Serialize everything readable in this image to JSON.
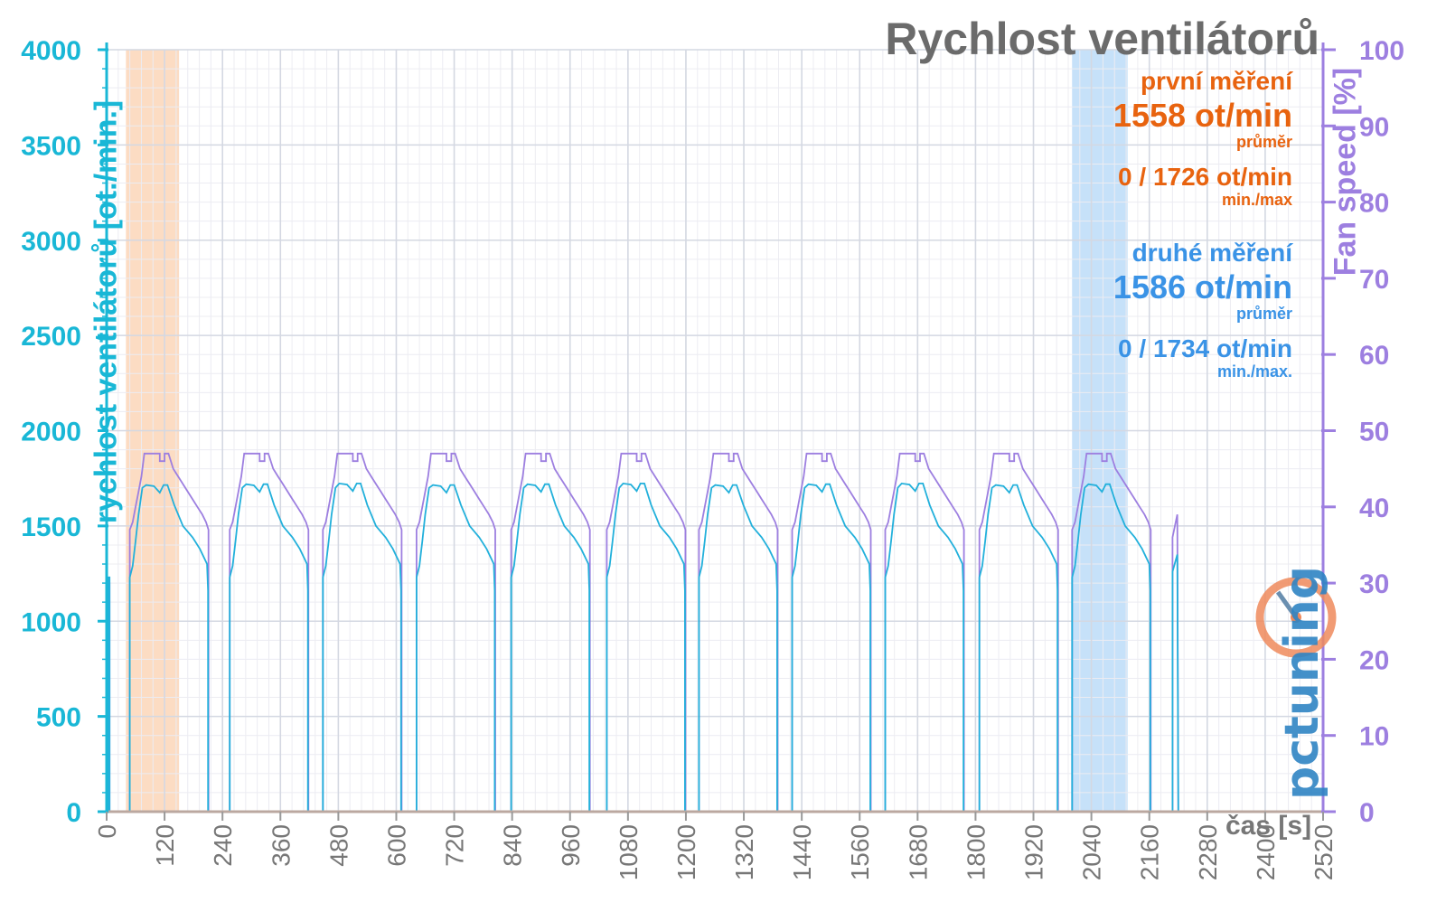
{
  "title": "Rychlost ventilátorů",
  "measure1": {
    "heading": "první měření",
    "avg": "1558 ot/min",
    "avg_label": "průměr",
    "minmax": "0 / 1726 ot/min",
    "minmax_label": "min./max",
    "color": "#e8630f"
  },
  "measure2": {
    "heading": "druhé měření",
    "avg": "1586 ot/min",
    "avg_label": "průměr",
    "minmax": "0 / 1734 ot/min",
    "minmax_label": "min./max.",
    "color": "#3a93e6"
  },
  "logo_text": "pctuning",
  "chart_data": {
    "type": "line",
    "xlabel": "čas [s]",
    "ylabel": "rychlost ventilátorů [ot./min.]",
    "y2label": "Fan speed [%]",
    "xlim": [
      0,
      2520
    ],
    "ylim": [
      0,
      4000
    ],
    "y2lim": [
      0,
      100
    ],
    "x_ticks": [
      0,
      120,
      240,
      360,
      480,
      600,
      720,
      840,
      960,
      1080,
      1200,
      1320,
      1440,
      1560,
      1680,
      1800,
      1920,
      2040,
      2160,
      2280,
      2400,
      2520
    ],
    "y_ticks": [
      0,
      500,
      1000,
      1500,
      2000,
      2500,
      3000,
      3500,
      4000
    ],
    "y2_ticks": [
      0,
      10,
      20,
      30,
      40,
      50,
      60,
      70,
      80,
      90,
      100
    ],
    "grid": true,
    "highlights": [
      {
        "x": [
          40,
          150
        ],
        "color": "#fbd6b8"
      },
      {
        "x": [
          2000,
          2115
        ],
        "color": "#bcdcf8"
      }
    ],
    "cycles": {
      "starts": [
        48,
        255,
        448,
        642,
        838,
        1036,
        1227,
        1420,
        1613,
        1808,
        2000
      ],
      "duration": 165,
      "partial_start": [
        2208,
        2232
      ],
      "rpm_colors": [
        "#e8630f",
        "#3a93e6"
      ],
      "colors": {
        "rpm": "#22b0db",
        "pct": "#9d7fe0",
        "rpm_drop": "#4a7fd9"
      }
    },
    "series": [
      {
        "name": "rychlost ventilátorů [ot./min.]",
        "axis": "left",
        "plateau": 1715,
        "peak": 1734,
        "start": 1230
      },
      {
        "name": "Fan speed [%]",
        "axis": "right",
        "plateau": 47,
        "start": 37
      }
    ]
  },
  "axis_colors": {
    "left": "#19b7d6",
    "right": "#9d7fe0",
    "x": "#777777"
  }
}
